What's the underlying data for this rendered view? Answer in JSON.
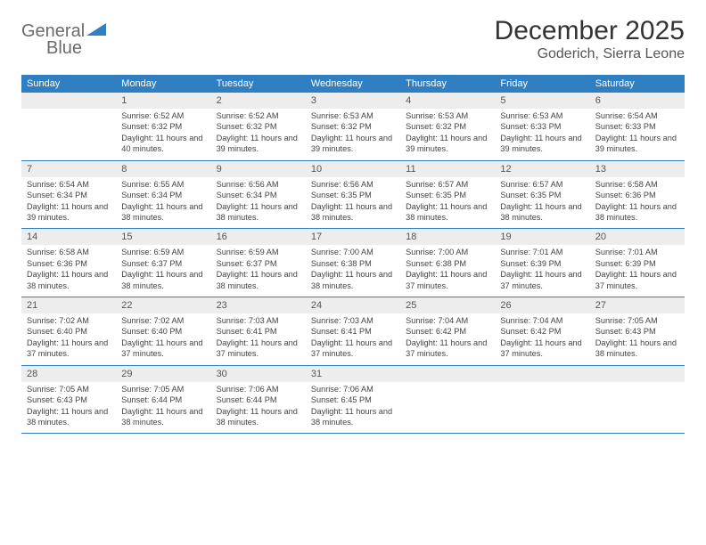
{
  "logo": {
    "word1": "General",
    "word2": "Blue",
    "accent_color": "#2f7fc2",
    "text_color": "#6b6b6b"
  },
  "title": {
    "month": "December 2025",
    "location": "Goderich, Sierra Leone"
  },
  "colors": {
    "header_bg": "#2f7fc2",
    "header_text": "#ffffff",
    "daynum_bg": "#ededed",
    "border": "#2f7fc2"
  },
  "day_headers": [
    "Sunday",
    "Monday",
    "Tuesday",
    "Wednesday",
    "Thursday",
    "Friday",
    "Saturday"
  ],
  "weeks": [
    {
      "cells": [
        {
          "num": "",
          "sunrise": "",
          "sunset": "",
          "daylight": ""
        },
        {
          "num": "1",
          "sunrise": "Sunrise: 6:52 AM",
          "sunset": "Sunset: 6:32 PM",
          "daylight": "Daylight: 11 hours and 40 minutes."
        },
        {
          "num": "2",
          "sunrise": "Sunrise: 6:52 AM",
          "sunset": "Sunset: 6:32 PM",
          "daylight": "Daylight: 11 hours and 39 minutes."
        },
        {
          "num": "3",
          "sunrise": "Sunrise: 6:53 AM",
          "sunset": "Sunset: 6:32 PM",
          "daylight": "Daylight: 11 hours and 39 minutes."
        },
        {
          "num": "4",
          "sunrise": "Sunrise: 6:53 AM",
          "sunset": "Sunset: 6:32 PM",
          "daylight": "Daylight: 11 hours and 39 minutes."
        },
        {
          "num": "5",
          "sunrise": "Sunrise: 6:53 AM",
          "sunset": "Sunset: 6:33 PM",
          "daylight": "Daylight: 11 hours and 39 minutes."
        },
        {
          "num": "6",
          "sunrise": "Sunrise: 6:54 AM",
          "sunset": "Sunset: 6:33 PM",
          "daylight": "Daylight: 11 hours and 39 minutes."
        }
      ]
    },
    {
      "cells": [
        {
          "num": "7",
          "sunrise": "Sunrise: 6:54 AM",
          "sunset": "Sunset: 6:34 PM",
          "daylight": "Daylight: 11 hours and 39 minutes."
        },
        {
          "num": "8",
          "sunrise": "Sunrise: 6:55 AM",
          "sunset": "Sunset: 6:34 PM",
          "daylight": "Daylight: 11 hours and 38 minutes."
        },
        {
          "num": "9",
          "sunrise": "Sunrise: 6:56 AM",
          "sunset": "Sunset: 6:34 PM",
          "daylight": "Daylight: 11 hours and 38 minutes."
        },
        {
          "num": "10",
          "sunrise": "Sunrise: 6:56 AM",
          "sunset": "Sunset: 6:35 PM",
          "daylight": "Daylight: 11 hours and 38 minutes."
        },
        {
          "num": "11",
          "sunrise": "Sunrise: 6:57 AM",
          "sunset": "Sunset: 6:35 PM",
          "daylight": "Daylight: 11 hours and 38 minutes."
        },
        {
          "num": "12",
          "sunrise": "Sunrise: 6:57 AM",
          "sunset": "Sunset: 6:35 PM",
          "daylight": "Daylight: 11 hours and 38 minutes."
        },
        {
          "num": "13",
          "sunrise": "Sunrise: 6:58 AM",
          "sunset": "Sunset: 6:36 PM",
          "daylight": "Daylight: 11 hours and 38 minutes."
        }
      ]
    },
    {
      "cells": [
        {
          "num": "14",
          "sunrise": "Sunrise: 6:58 AM",
          "sunset": "Sunset: 6:36 PM",
          "daylight": "Daylight: 11 hours and 38 minutes."
        },
        {
          "num": "15",
          "sunrise": "Sunrise: 6:59 AM",
          "sunset": "Sunset: 6:37 PM",
          "daylight": "Daylight: 11 hours and 38 minutes."
        },
        {
          "num": "16",
          "sunrise": "Sunrise: 6:59 AM",
          "sunset": "Sunset: 6:37 PM",
          "daylight": "Daylight: 11 hours and 38 minutes."
        },
        {
          "num": "17",
          "sunrise": "Sunrise: 7:00 AM",
          "sunset": "Sunset: 6:38 PM",
          "daylight": "Daylight: 11 hours and 38 minutes."
        },
        {
          "num": "18",
          "sunrise": "Sunrise: 7:00 AM",
          "sunset": "Sunset: 6:38 PM",
          "daylight": "Daylight: 11 hours and 37 minutes."
        },
        {
          "num": "19",
          "sunrise": "Sunrise: 7:01 AM",
          "sunset": "Sunset: 6:39 PM",
          "daylight": "Daylight: 11 hours and 37 minutes."
        },
        {
          "num": "20",
          "sunrise": "Sunrise: 7:01 AM",
          "sunset": "Sunset: 6:39 PM",
          "daylight": "Daylight: 11 hours and 37 minutes."
        }
      ]
    },
    {
      "cells": [
        {
          "num": "21",
          "sunrise": "Sunrise: 7:02 AM",
          "sunset": "Sunset: 6:40 PM",
          "daylight": "Daylight: 11 hours and 37 minutes."
        },
        {
          "num": "22",
          "sunrise": "Sunrise: 7:02 AM",
          "sunset": "Sunset: 6:40 PM",
          "daylight": "Daylight: 11 hours and 37 minutes."
        },
        {
          "num": "23",
          "sunrise": "Sunrise: 7:03 AM",
          "sunset": "Sunset: 6:41 PM",
          "daylight": "Daylight: 11 hours and 37 minutes."
        },
        {
          "num": "24",
          "sunrise": "Sunrise: 7:03 AM",
          "sunset": "Sunset: 6:41 PM",
          "daylight": "Daylight: 11 hours and 37 minutes."
        },
        {
          "num": "25",
          "sunrise": "Sunrise: 7:04 AM",
          "sunset": "Sunset: 6:42 PM",
          "daylight": "Daylight: 11 hours and 37 minutes."
        },
        {
          "num": "26",
          "sunrise": "Sunrise: 7:04 AM",
          "sunset": "Sunset: 6:42 PM",
          "daylight": "Daylight: 11 hours and 37 minutes."
        },
        {
          "num": "27",
          "sunrise": "Sunrise: 7:05 AM",
          "sunset": "Sunset: 6:43 PM",
          "daylight": "Daylight: 11 hours and 38 minutes."
        }
      ]
    },
    {
      "cells": [
        {
          "num": "28",
          "sunrise": "Sunrise: 7:05 AM",
          "sunset": "Sunset: 6:43 PM",
          "daylight": "Daylight: 11 hours and 38 minutes."
        },
        {
          "num": "29",
          "sunrise": "Sunrise: 7:05 AM",
          "sunset": "Sunset: 6:44 PM",
          "daylight": "Daylight: 11 hours and 38 minutes."
        },
        {
          "num": "30",
          "sunrise": "Sunrise: 7:06 AM",
          "sunset": "Sunset: 6:44 PM",
          "daylight": "Daylight: 11 hours and 38 minutes."
        },
        {
          "num": "31",
          "sunrise": "Sunrise: 7:06 AM",
          "sunset": "Sunset: 6:45 PM",
          "daylight": "Daylight: 11 hours and 38 minutes."
        },
        {
          "num": "",
          "sunrise": "",
          "sunset": "",
          "daylight": ""
        },
        {
          "num": "",
          "sunrise": "",
          "sunset": "",
          "daylight": ""
        },
        {
          "num": "",
          "sunrise": "",
          "sunset": "",
          "daylight": ""
        }
      ]
    }
  ]
}
